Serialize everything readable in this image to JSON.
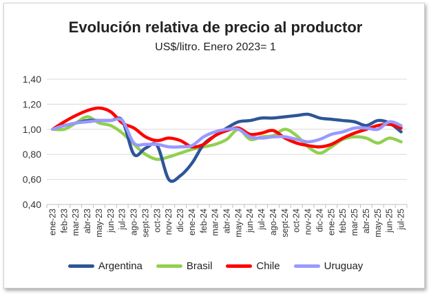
{
  "chart_data": {
    "type": "line",
    "title": "Evolución relativa de precio al productor",
    "subtitle": "US$/litro. Enero 2023= 1",
    "ylim": [
      0.4,
      1.4
    ],
    "yticks": [
      "0,40",
      "0,60",
      "0,80",
      "1,00",
      "1,20",
      "1,40"
    ],
    "grid": true,
    "legend_position": "bottom",
    "x": [
      "ene-23",
      "feb-23",
      "mar-23",
      "abr-23",
      "may-23",
      "jun-23",
      "jul-23",
      "ago-23",
      "sept-23",
      "oct-23",
      "nov-23",
      "dic-23",
      "ene-24",
      "feb-24",
      "mar-24",
      "abr-24",
      "may-24",
      "jun-24",
      "jul-24",
      "ago-24",
      "sept-24",
      "oct-24",
      "nov-24",
      "dic-24",
      "ene-25",
      "feb-25",
      "mar-25",
      "abr-25",
      "may-25",
      "jun-25",
      "jul-25"
    ],
    "series": [
      {
        "name": "Argentina",
        "color": "#2e5597",
        "values": [
          1.0,
          1.03,
          1.05,
          1.07,
          1.07,
          1.07,
          1.07,
          0.8,
          0.85,
          0.87,
          0.6,
          0.63,
          0.73,
          0.88,
          0.95,
          1.01,
          1.06,
          1.07,
          1.09,
          1.09,
          1.1,
          1.11,
          1.12,
          1.09,
          1.08,
          1.07,
          1.06,
          1.03,
          1.07,
          1.05,
          0.98
        ]
      },
      {
        "name": "Brasil",
        "color": "#92d050",
        "values": [
          1.0,
          1.0,
          1.05,
          1.1,
          1.05,
          1.03,
          0.97,
          0.88,
          0.8,
          0.76,
          0.78,
          0.81,
          0.84,
          0.86,
          0.88,
          0.92,
          1.0,
          0.92,
          0.94,
          0.95,
          1.0,
          0.95,
          0.86,
          0.81,
          0.86,
          0.92,
          0.94,
          0.93,
          0.89,
          0.93,
          0.9
        ]
      },
      {
        "name": "Chile",
        "color": "#ff0000",
        "values": [
          1.0,
          1.06,
          1.11,
          1.15,
          1.17,
          1.14,
          1.05,
          1.01,
          0.94,
          0.91,
          0.93,
          0.91,
          0.86,
          0.88,
          0.95,
          0.99,
          1.01,
          0.96,
          0.97,
          0.99,
          0.93,
          0.89,
          0.87,
          0.86,
          0.88,
          0.93,
          0.97,
          1.0,
          1.03,
          1.04,
          1.01
        ]
      },
      {
        "name": "Uruguay",
        "color": "#9999ff",
        "values": [
          1.0,
          1.03,
          1.05,
          1.06,
          1.07,
          1.07,
          1.07,
          0.89,
          0.88,
          0.88,
          0.86,
          0.86,
          0.87,
          0.94,
          0.98,
          1.0,
          1.0,
          0.94,
          0.93,
          0.94,
          0.94,
          0.92,
          0.9,
          0.92,
          0.96,
          0.98,
          1.01,
          1.01,
          1.0,
          1.06,
          1.03
        ]
      }
    ]
  }
}
